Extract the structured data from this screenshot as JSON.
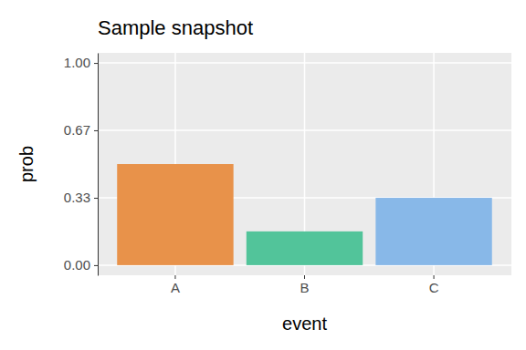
{
  "chart_data": {
    "type": "bar",
    "title": "Sample snapshot",
    "xlabel": "event",
    "ylabel": "prob",
    "categories": [
      "A",
      "B",
      "C"
    ],
    "values": [
      0.5,
      0.167,
      0.333
    ],
    "colors": [
      "#E8924A",
      "#52C49A",
      "#88B8E8"
    ],
    "ylim": [
      -0.05,
      1.05
    ],
    "yticks": [
      {
        "value": 0,
        "label": "0.00"
      },
      {
        "value": 0.333,
        "label": "0.33"
      },
      {
        "value": 0.667,
        "label": "0.67"
      },
      {
        "value": 1,
        "label": "1.00"
      }
    ],
    "grid": true
  }
}
